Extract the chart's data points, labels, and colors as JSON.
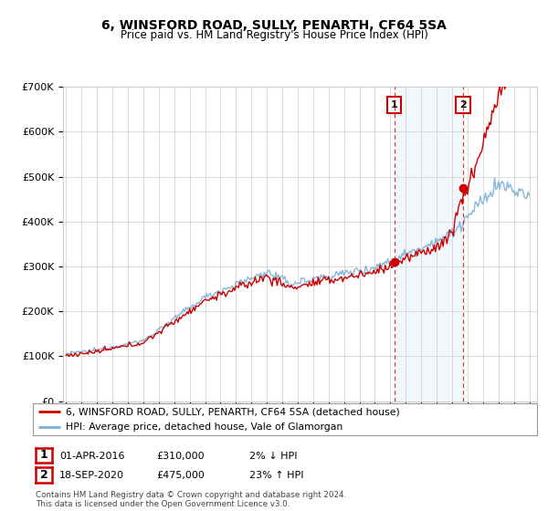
{
  "title": "6, WINSFORD ROAD, SULLY, PENARTH, CF64 5SA",
  "subtitle": "Price paid vs. HM Land Registry's House Price Index (HPI)",
  "legend_line1": "6, WINSFORD ROAD, SULLY, PENARTH, CF64 5SA (detached house)",
  "legend_line2": "HPI: Average price, detached house, Vale of Glamorgan",
  "annotation1_date": "01-APR-2016",
  "annotation1_price": "£310,000",
  "annotation1_hpi": "2% ↓ HPI",
  "annotation1_year": 2016.25,
  "annotation1_value": 310000,
  "annotation2_date": "18-SEP-2020",
  "annotation2_price": "£475,000",
  "annotation2_hpi": "23% ↑ HPI",
  "annotation2_year": 2020.71,
  "annotation2_value": 475000,
  "footer": "Contains HM Land Registry data © Crown copyright and database right 2024.\nThis data is licensed under the Open Government Licence v3.0.",
  "ylim": [
    0,
    700000
  ],
  "xlim_start": 1994.8,
  "xlim_end": 2025.5,
  "property_color": "#cc0000",
  "hpi_color": "#7bafd4",
  "hpi_fill_color": "#ddeeff",
  "dashed_line_color": "#cc0000",
  "background_color": "#ffffff",
  "grid_color": "#cccccc"
}
